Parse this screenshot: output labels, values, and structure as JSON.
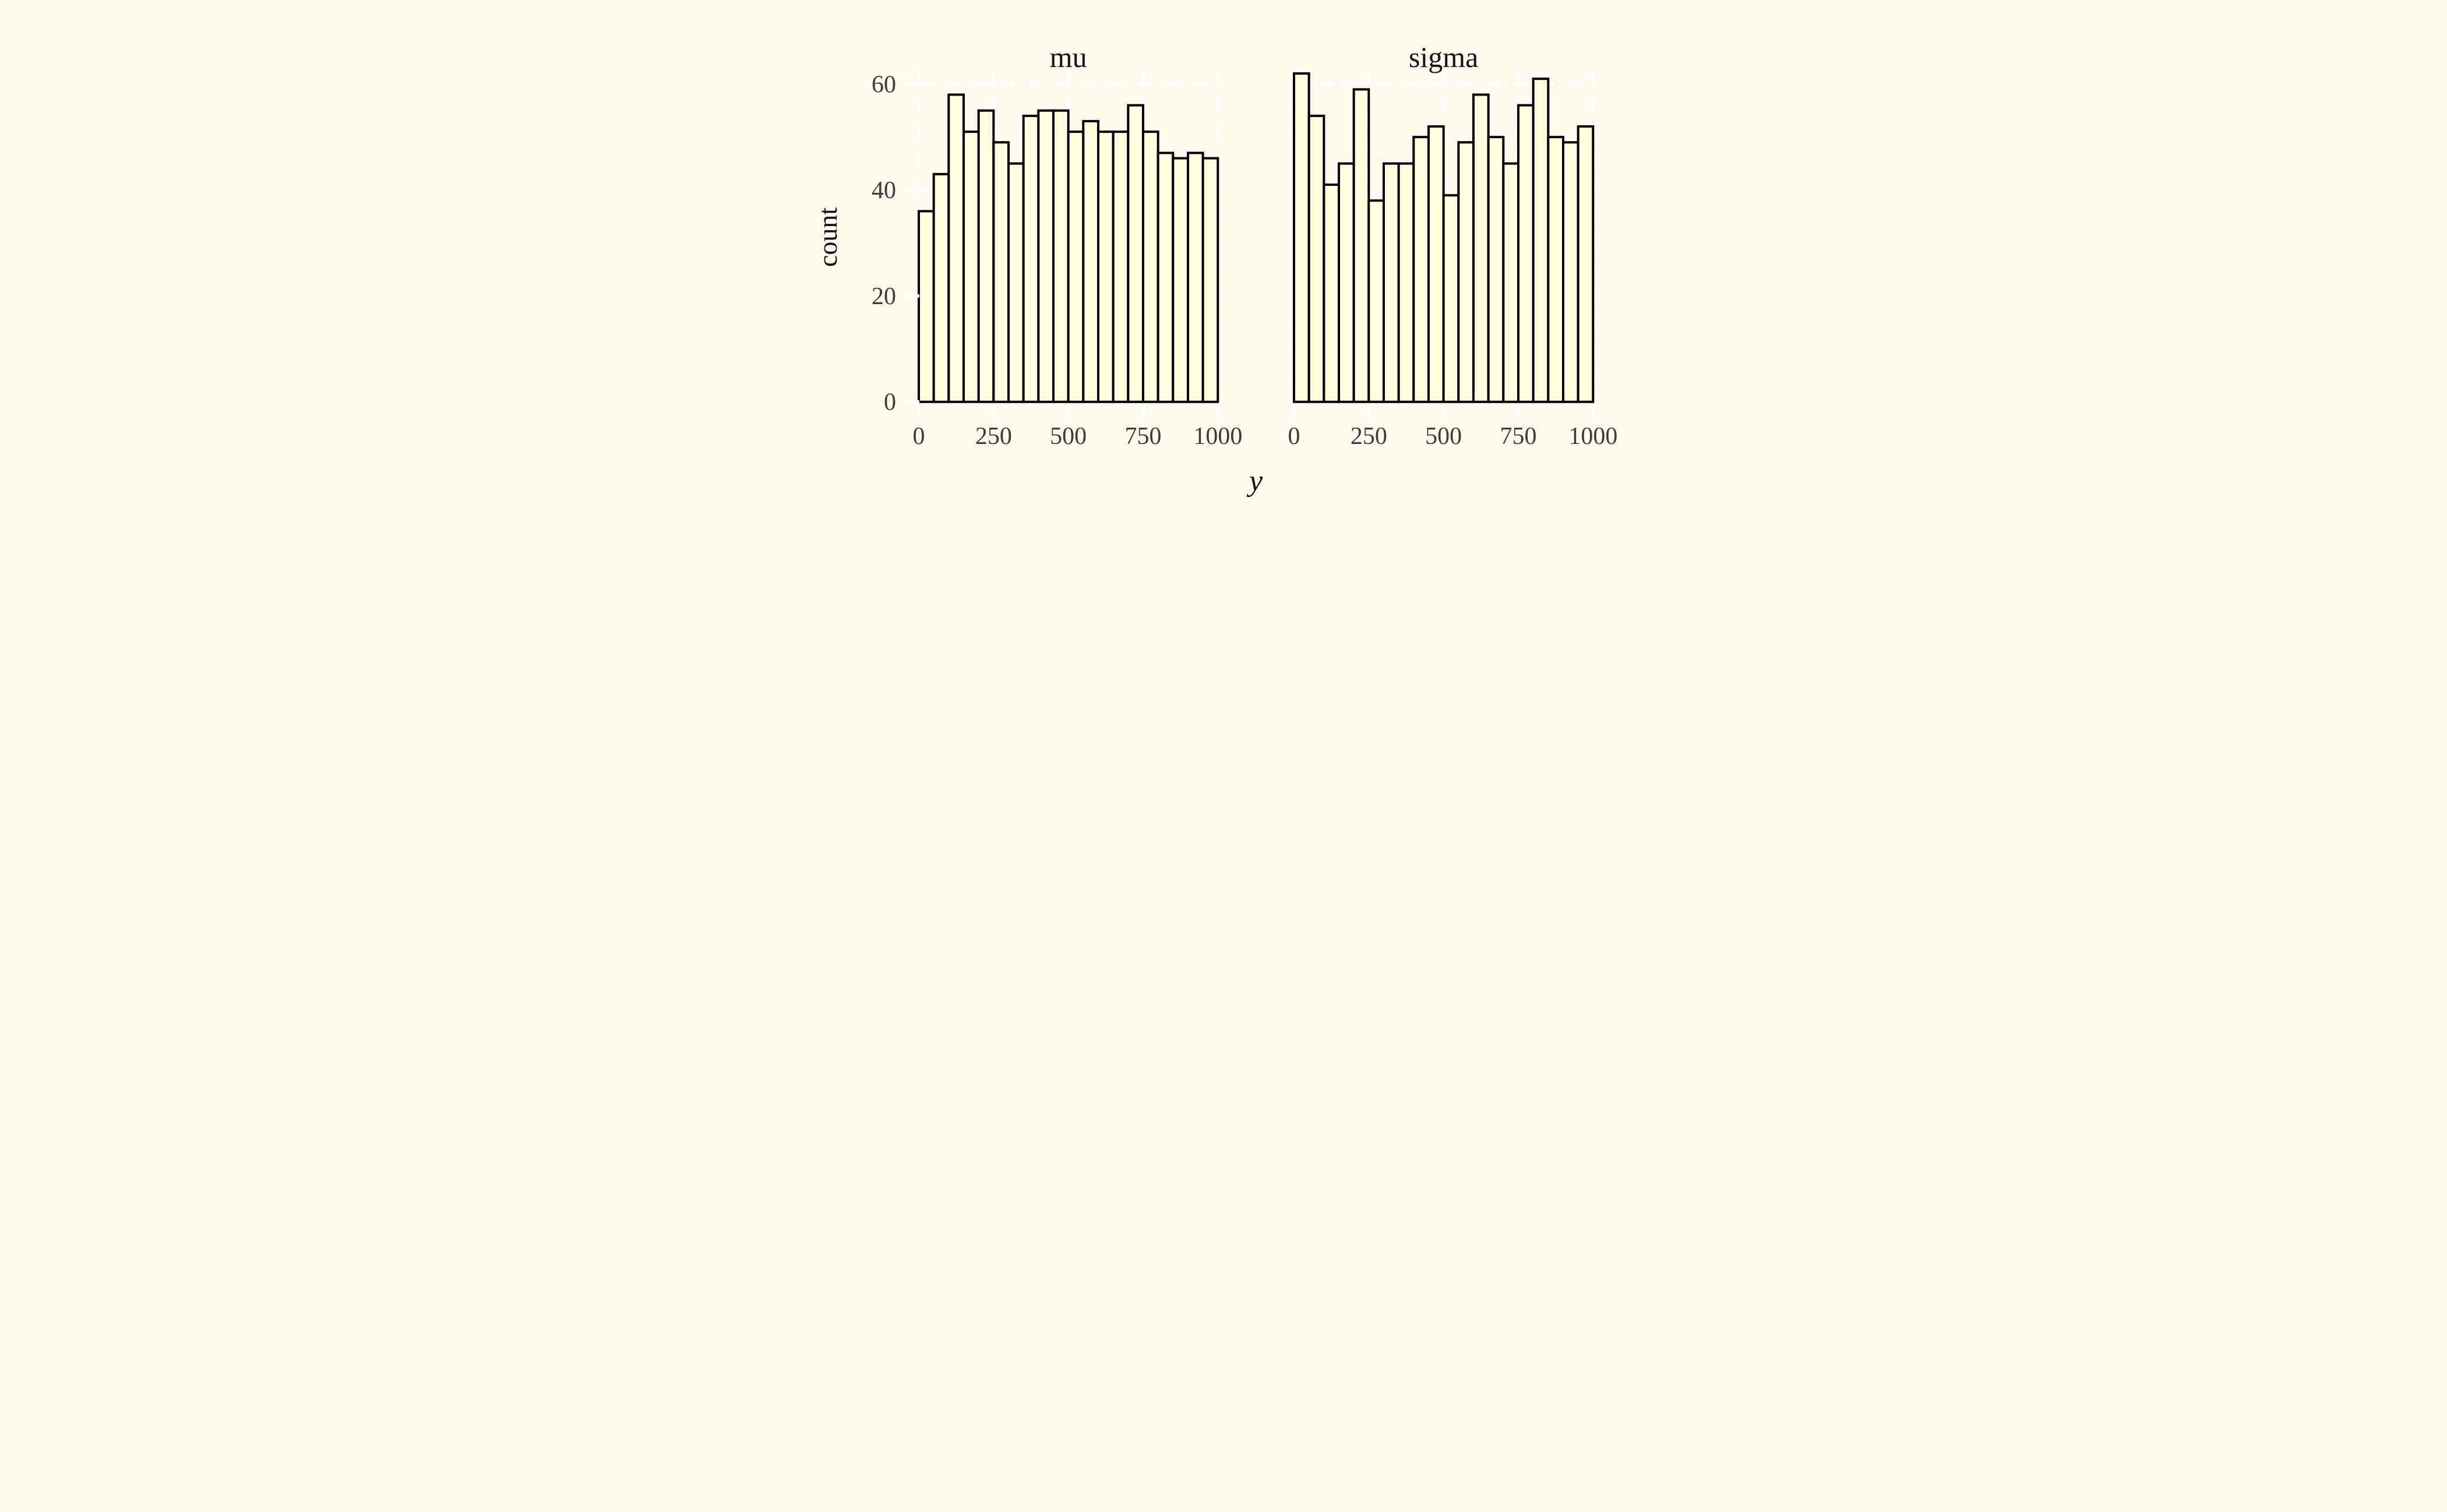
{
  "figure": {
    "ylabel": "count",
    "xlabel": "y",
    "panel_titles": [
      "mu",
      "sigma"
    ]
  },
  "chart_data": {
    "type": "bar",
    "subtype": "histogram-facets",
    "facets": [
      {
        "title": "mu",
        "values": [
          36,
          43,
          58,
          51,
          55,
          49,
          45,
          54,
          55,
          55,
          51,
          53,
          51,
          51,
          56,
          51,
          47,
          46,
          47,
          46
        ]
      },
      {
        "title": "sigma",
        "values": [
          62,
          54,
          41,
          45,
          59,
          38,
          45,
          45,
          50,
          52,
          39,
          49,
          58,
          50,
          45,
          56,
          61,
          50,
          49,
          52
        ]
      }
    ],
    "bin_start": 0,
    "bin_width": 50,
    "n_bins": 20,
    "xlabel": "y",
    "ylabel": "count",
    "x_ticks": [
      0,
      250,
      500,
      750,
      1000
    ],
    "y_ticks": [
      0,
      20,
      40,
      60
    ],
    "xlim": [
      0,
      1000
    ],
    "ylim": [
      0,
      63
    ],
    "grid": "major, white, dashed",
    "legend": "none",
    "style": {
      "background": "#FCFAED",
      "bar_fill": "#FFFFE0",
      "bar_stroke": "#000000",
      "grid_color": "#FFFFFF",
      "tick_color": "#FFFFFF",
      "tick_label_color": "#3C3C3A",
      "title_color": "#151515",
      "axis_label_color": "#111111"
    }
  }
}
